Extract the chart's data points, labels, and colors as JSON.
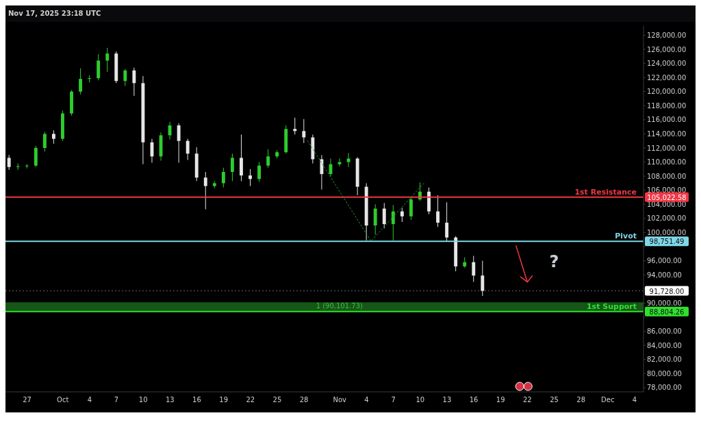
{
  "chart_data": {
    "type": "candlestick",
    "annotations": [
      "Nov 17, 2025 23:18 UTC",
      "?",
      "105,022.58",
      "98,751.49",
      "91,728.00",
      "88,804.26"
    ],
    "x": [
      "2025-09-25",
      "2025-09-26",
      "2025-09-27",
      "2025-09-28",
      "2025-09-29",
      "2025-09-30",
      "2025-10-01",
      "2025-10-02",
      "2025-10-03",
      "2025-10-04",
      "2025-10-05",
      "2025-10-06",
      "2025-10-07",
      "2025-10-08",
      "2025-10-09",
      "2025-10-10",
      "2025-10-11",
      "2025-10-12",
      "2025-10-13",
      "2025-10-14",
      "2025-10-15",
      "2025-10-16",
      "2025-10-17",
      "2025-10-18",
      "2025-10-19",
      "2025-10-20",
      "2025-10-21",
      "2025-10-22",
      "2025-10-23",
      "2025-10-24",
      "2025-10-25",
      "2025-10-26",
      "2025-10-27",
      "2025-10-28",
      "2025-10-29",
      "2025-10-30",
      "2025-10-31",
      "2025-11-01",
      "2025-11-02",
      "2025-11-03",
      "2025-11-04",
      "2025-11-05",
      "2025-11-06",
      "2025-11-07",
      "2025-11-08",
      "2025-11-09",
      "2025-11-10",
      "2025-11-11",
      "2025-11-12",
      "2025-11-13",
      "2025-11-14",
      "2025-11-15",
      "2025-11-16",
      "2025-11-17"
    ],
    "ohlc": [
      [
        110600,
        111000,
        108900,
        109300
      ],
      [
        109300,
        109800,
        108900,
        109400
      ],
      [
        109400,
        109700,
        109100,
        109500
      ],
      [
        109500,
        112300,
        109300,
        112000
      ],
      [
        112000,
        114300,
        111500,
        114000
      ],
      [
        114000,
        114500,
        112600,
        113300
      ],
      [
        113300,
        117300,
        113000,
        116900
      ],
      [
        116900,
        120200,
        116600,
        120000
      ],
      [
        120000,
        123300,
        119600,
        121800
      ],
      [
        121800,
        122300,
        121300,
        121900
      ],
      [
        121900,
        125300,
        121600,
        124400
      ],
      [
        124400,
        126200,
        122800,
        125400
      ],
      [
        125400,
        125700,
        121200,
        121500
      ],
      [
        121500,
        123200,
        120800,
        123000
      ],
      [
        123000,
        123400,
        119400,
        121200
      ],
      [
        121200,
        122200,
        109700,
        112800
      ],
      [
        112800,
        113300,
        109900,
        110800
      ],
      [
        110800,
        114200,
        110200,
        113800
      ],
      [
        113800,
        115700,
        113200,
        115200
      ],
      [
        115200,
        115500,
        109900,
        113000
      ],
      [
        113000,
        113300,
        110300,
        111200
      ],
      [
        111200,
        112100,
        107300,
        107800
      ],
      [
        107800,
        108600,
        103300,
        106600
      ],
      [
        106600,
        107300,
        106300,
        107000
      ],
      [
        107000,
        109200,
        106400,
        108600
      ],
      [
        108600,
        111200,
        107300,
        110600
      ],
      [
        110600,
        113900,
        107300,
        108100
      ],
      [
        108100,
        109000,
        106600,
        107600
      ],
      [
        107600,
        110000,
        107200,
        109500
      ],
      [
        109500,
        111800,
        109200,
        110800
      ],
      [
        110800,
        111700,
        110500,
        111400
      ],
      [
        111400,
        115200,
        111200,
        114700
      ],
      [
        114700,
        116300,
        113900,
        114400
      ],
      [
        114400,
        116100,
        112700,
        113500
      ],
      [
        113500,
        113900,
        109800,
        110400
      ],
      [
        110400,
        111000,
        106100,
        108300
      ],
      [
        108300,
        110500,
        108000,
        109700
      ],
      [
        109700,
        110500,
        109400,
        110000
      ],
      [
        110000,
        111300,
        109300,
        110500
      ],
      [
        110500,
        110700,
        105300,
        106500
      ],
      [
        106500,
        107000,
        98900,
        101000
      ],
      [
        101000,
        104000,
        99700,
        103400
      ],
      [
        103400,
        104200,
        100600,
        101200
      ],
      [
        101200,
        103900,
        98900,
        103000
      ],
      [
        103000,
        103500,
        101500,
        102300
      ],
      [
        102300,
        105000,
        101800,
        104700
      ],
      [
        104700,
        107100,
        104500,
        105800
      ],
      [
        105800,
        106400,
        102600,
        103000
      ],
      [
        103000,
        105300,
        100800,
        101400
      ],
      [
        101400,
        104300,
        98800,
        99300
      ],
      [
        99300,
        99500,
        94500,
        95200
      ],
      [
        95200,
        96500,
        95000,
        95800
      ],
      [
        95800,
        96700,
        93000,
        93900
      ],
      [
        93900,
        96000,
        91000,
        91728
      ]
    ],
    "colors": [
      "#e6e6e6",
      "#2ecc2e",
      "#2ecc2e",
      "#2ecc2e",
      "#2ecc2e",
      "#e6e6e6",
      "#2ecc2e",
      "#2ecc2e",
      "#2ecc2e",
      "#2ecc2e",
      "#2ecc2e",
      "#2ecc2e",
      "#e6e6e6",
      "#2ecc2e",
      "#e6e6e6",
      "#e6e6e6",
      "#e6e6e6",
      "#2ecc2e",
      "#2ecc2e",
      "#e6e6e6",
      "#e6e6e6",
      "#e6e6e6",
      "#e6e6e6",
      "#2ecc2e",
      "#2ecc2e",
      "#2ecc2e",
      "#e6e6e6",
      "#e6e6e6",
      "#2ecc2e",
      "#2ecc2e",
      "#2ecc2e",
      "#2ecc2e",
      "#e6e6e6",
      "#e6e6e6",
      "#e6e6e6",
      "#e6e6e6",
      "#2ecc2e",
      "#2ecc2e",
      "#2ecc2e",
      "#e6e6e6",
      "#e6e6e6",
      "#2ecc2e",
      "#e6e6e6",
      "#2ecc2e",
      "#e6e6e6",
      "#2ecc2e",
      "#2ecc2e",
      "#e6e6e6",
      "#e6e6e6",
      "#e6e6e6",
      "#e6e6e6",
      "#2ecc2e",
      "#e6e6e6",
      "#e6e6e6"
    ],
    "series": [
      {
        "type": "line",
        "x": [
          "2025-10-28T10:00",
          "2025-11-04T12:00",
          "2025-11-10T10:00"
        ],
        "values": [
          113000,
          98800,
          107000
        ],
        "color": "#1f9a2f",
        "line_style": "dotted"
      }
    ],
    "ref_lines": [
      {
        "axis": "y",
        "value": 105022.58,
        "label": "1st Resistance",
        "color": "#f23645"
      },
      {
        "axis": "y",
        "value": 98751.49,
        "label": "Pivot",
        "color": "#7fd8e8"
      },
      {
        "axis": "y",
        "value": 91728,
        "label": null,
        "color": "#ffffff",
        "line_style": "dotted"
      },
      {
        "axis": "y",
        "value": 88804.26,
        "label": "1st Support",
        "color": "#2fe02f"
      }
    ],
    "bands": [
      {
        "axis": "y",
        "from": 88804.26,
        "to": 90101.73,
        "label": "1 (90,101.73)",
        "color": "#1c6b1c"
      }
    ],
    "xlim": [
      "2025-09-24T14:00",
      "2025-12-05"
    ],
    "xticks": [
      {
        "value": "2025-09-27",
        "label": "27"
      },
      {
        "value": "2025-10-01",
        "label": "Oct"
      },
      {
        "value": "2025-10-04",
        "label": "4"
      },
      {
        "value": "2025-10-07",
        "label": "7"
      },
      {
        "value": "2025-10-10",
        "label": "10"
      },
      {
        "value": "2025-10-13",
        "label": "13"
      },
      {
        "value": "2025-10-16",
        "label": "16"
      },
      {
        "value": "2025-10-19",
        "label": "19"
      },
      {
        "value": "2025-10-22",
        "label": "22"
      },
      {
        "value": "2025-10-25",
        "label": "25"
      },
      {
        "value": "2025-10-28",
        "label": "28"
      },
      {
        "value": "2025-11-01",
        "label": "Nov"
      },
      {
        "value": "2025-11-04",
        "label": "4"
      },
      {
        "value": "2025-11-07",
        "label": "7"
      },
      {
        "value": "2025-11-10",
        "label": "10"
      },
      {
        "value": "2025-11-13",
        "label": "13"
      },
      {
        "value": "2025-11-16",
        "label": "16"
      },
      {
        "value": "2025-11-19",
        "label": "19"
      },
      {
        "value": "2025-11-22",
        "label": "22"
      },
      {
        "value": "2025-11-25",
        "label": "25"
      },
      {
        "value": "2025-11-28",
        "label": "28"
      },
      {
        "value": "2025-12-01",
        "label": "Dec"
      },
      {
        "value": "2025-12-04",
        "label": "4"
      }
    ],
    "ylim": [
      77400,
      129300
    ],
    "yticks": [
      {
        "value": 78000,
        "label": "78,000.00"
      },
      {
        "value": 80000,
        "label": "80,000.00"
      },
      {
        "value": 82000,
        "label": "82,000.00"
      },
      {
        "value": 84000,
        "label": "84,000.00"
      },
      {
        "value": 86000,
        "label": "86,000.00"
      },
      {
        "value": 88000,
        "label": null
      },
      {
        "value": 90000,
        "label": "90,000.00"
      },
      {
        "value": 92000,
        "label": null
      },
      {
        "value": 94000,
        "label": "94,000.00"
      },
      {
        "value": 96000,
        "label": "96,000.00"
      },
      {
        "value": 98000,
        "label": null
      },
      {
        "value": 100000,
        "label": "100,000.00"
      },
      {
        "value": 102000,
        "label": "102,000.00"
      },
      {
        "value": 104000,
        "label": "104,000.00"
      },
      {
        "value": 106000,
        "label": "106,000.00"
      },
      {
        "value": 108000,
        "label": "108,000.00"
      },
      {
        "value": 110000,
        "label": "110,000.00"
      },
      {
        "value": 112000,
        "label": "112,000.00"
      },
      {
        "value": 114000,
        "label": "114,000.00"
      },
      {
        "value": 116000,
        "label": "116,000.00"
      },
      {
        "value": 118000,
        "label": "118,000.00"
      },
      {
        "value": 120000,
        "label": "120,000.00"
      },
      {
        "value": 122000,
        "label": "122,000.00"
      },
      {
        "value": 124000,
        "label": "124,000.00"
      },
      {
        "value": 126000,
        "label": "126,000.00"
      },
      {
        "value": 128000,
        "label": "128,000.00"
      }
    ]
  }
}
